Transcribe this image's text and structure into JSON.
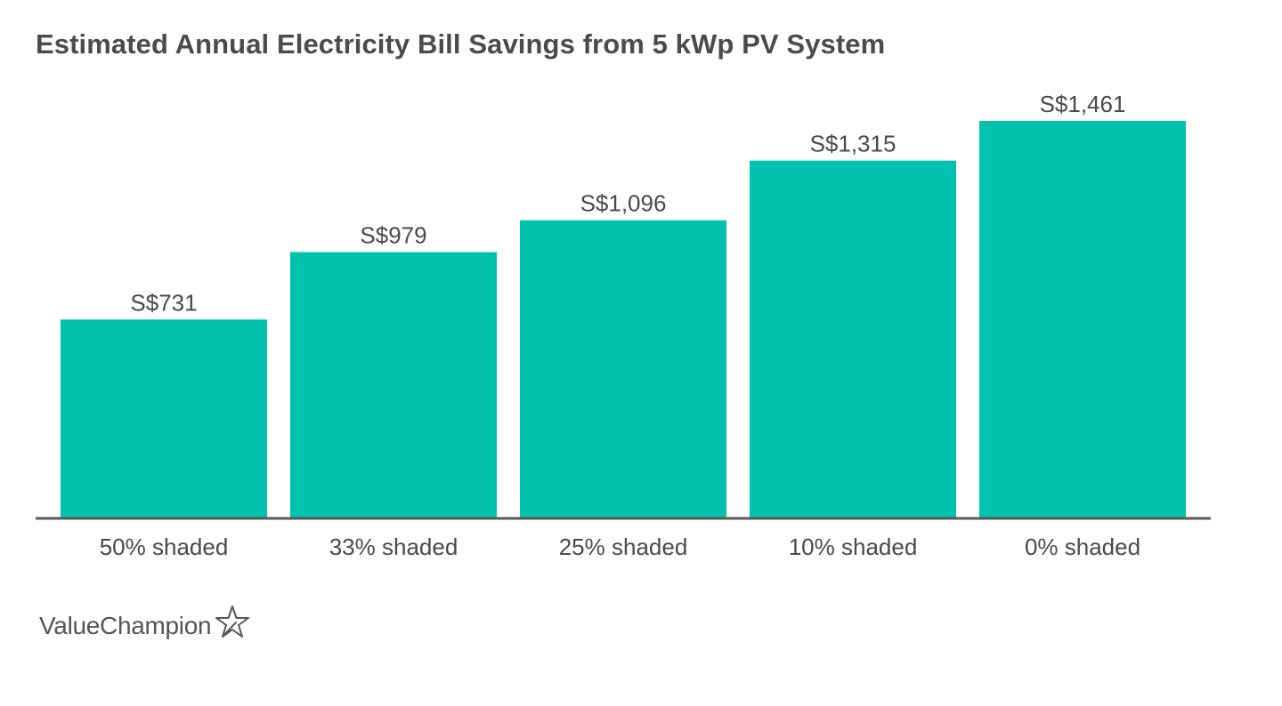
{
  "chart_data": {
    "type": "bar",
    "title": "Estimated Annual Electricity Bill Savings from 5 kWp PV System",
    "categories": [
      "50% shaded",
      "33% shaded",
      "25% shaded",
      "10% shaded",
      "0% shaded"
    ],
    "values": [
      731,
      979,
      1096,
      1315,
      1461
    ],
    "value_labels": [
      "S$731",
      "S$979",
      "S$1,096",
      "S$1,315",
      "S$1,461"
    ],
    "ylim": [
      0,
      1461
    ],
    "grid": false,
    "legend": "none",
    "bar_color": "#00c2ad"
  },
  "brand": {
    "name": "ValueChampion",
    "icon": "star-outline-icon"
  }
}
